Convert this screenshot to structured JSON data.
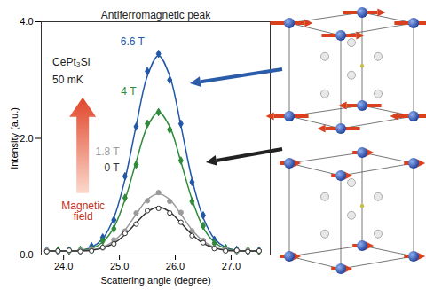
{
  "chart_data": {
    "type": "line",
    "title": "Antiferromagnetic peak",
    "x_label": "Scattering angle (degree)",
    "y_label": "Intensity (a.u.)",
    "xlim": [
      23.6,
      27.7
    ],
    "ylim": [
      0,
      4
    ],
    "xticks": [
      24,
      25,
      26,
      27
    ],
    "yticks": [
      0,
      2,
      4
    ],
    "x": [
      23.7,
      23.9,
      24.1,
      24.3,
      24.5,
      24.7,
      24.9,
      25.1,
      25.3,
      25.5,
      25.7,
      25.9,
      26.1,
      26.3,
      26.5,
      26.7,
      26.9,
      27.1,
      27.3,
      27.5
    ],
    "series": [
      {
        "name": "6.6 T",
        "color": "#2257a8",
        "marker": "diamond",
        "label_x": 25.45,
        "label_y": 3.65,
        "values": [
          0.08,
          0.06,
          0.08,
          0.07,
          0.15,
          0.3,
          0.6,
          1.35,
          2.2,
          3.15,
          3.45,
          3.0,
          2.25,
          1.25,
          0.68,
          0.26,
          0.12,
          0.09,
          0.06,
          0.08
        ],
        "fit": [
          0.07,
          0.07,
          0.07,
          0.08,
          0.13,
          0.28,
          0.64,
          1.3,
          2.22,
          3.07,
          3.42,
          3.07,
          2.22,
          1.3,
          0.64,
          0.28,
          0.13,
          0.08,
          0.07,
          0.07
        ]
      },
      {
        "name": "4 T",
        "color": "#2e8b3a",
        "marker": "diamond",
        "label_x": 25.3,
        "label_y": 2.8,
        "values": [
          0.06,
          0.08,
          0.07,
          0.09,
          0.1,
          0.24,
          0.45,
          0.98,
          1.55,
          2.25,
          2.45,
          2.15,
          1.62,
          0.92,
          0.5,
          0.2,
          0.12,
          0.07,
          0.08,
          0.06
        ],
        "fit": [
          0.07,
          0.07,
          0.07,
          0.08,
          0.11,
          0.22,
          0.47,
          0.95,
          1.6,
          2.2,
          2.45,
          2.2,
          1.6,
          0.95,
          0.47,
          0.22,
          0.11,
          0.08,
          0.07,
          0.07
        ]
      },
      {
        "name": "1.8 T",
        "color": "#9a9a9a",
        "marker": "circle",
        "label_x": 25.0,
        "label_y": 1.77,
        "values": [
          0.08,
          0.06,
          0.07,
          0.08,
          0.1,
          0.12,
          0.26,
          0.41,
          0.72,
          0.93,
          1.07,
          0.92,
          0.73,
          0.41,
          0.25,
          0.12,
          0.1,
          0.06,
          0.08,
          0.07
        ],
        "fit": [
          0.07,
          0.07,
          0.07,
          0.07,
          0.09,
          0.13,
          0.24,
          0.43,
          0.7,
          0.95,
          1.05,
          0.95,
          0.7,
          0.43,
          0.24,
          0.13,
          0.09,
          0.07,
          0.07,
          0.07
        ]
      },
      {
        "name": "0 T",
        "color": "#333333",
        "marker": "circle-open",
        "label_x": 25.0,
        "label_y": 1.5,
        "values": [
          0.06,
          0.07,
          0.08,
          0.06,
          0.07,
          0.13,
          0.19,
          0.37,
          0.53,
          0.76,
          0.8,
          0.72,
          0.56,
          0.33,
          0.21,
          0.11,
          0.07,
          0.08,
          0.06,
          0.07
        ],
        "fit": [
          0.07,
          0.07,
          0.07,
          0.07,
          0.08,
          0.12,
          0.2,
          0.35,
          0.55,
          0.74,
          0.82,
          0.74,
          0.55,
          0.35,
          0.2,
          0.12,
          0.08,
          0.07,
          0.07,
          0.07
        ]
      }
    ],
    "annotations": [
      {
        "text": "CePt₃Si",
        "x": 23.8,
        "y": 3.3,
        "color": "#222222"
      },
      {
        "text": "50 mK",
        "x": 23.8,
        "y": 3.0,
        "color": "#222222"
      }
    ],
    "arrow_label": {
      "text": "Magnetic field",
      "x": 24.35,
      "y": 0.75,
      "color": "#c0301c"
    }
  }
}
